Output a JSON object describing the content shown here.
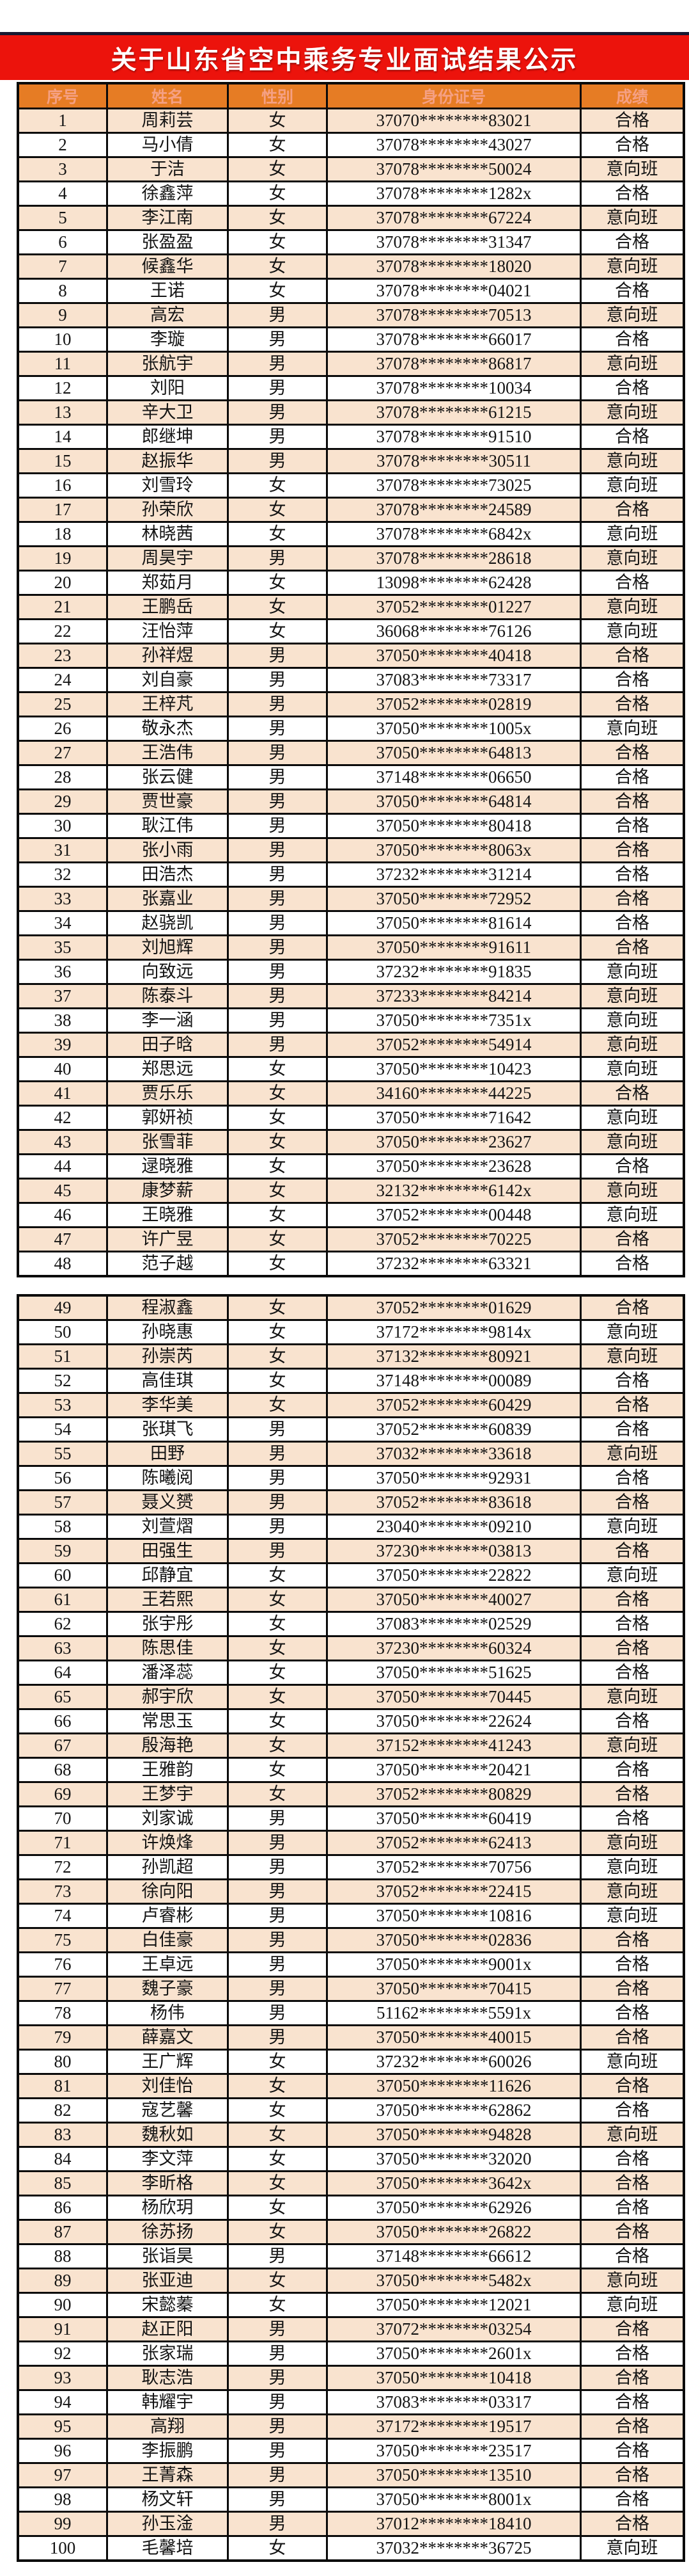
{
  "title": "关于山东省空中乘务专业面试结果公示",
  "colors": {
    "banner_red": "#ec130c",
    "top_line_dark": "#181830",
    "header_orange": "#e67c24",
    "header_text_salmon": "#f5a083",
    "row_stripe_peach": "#f9e3cf",
    "row_stripe_white": "#ffffff",
    "border_black": "#0a0a0a",
    "title_text": "#ffffff"
  },
  "table": {
    "headers": [
      "序号",
      "姓名",
      "性别",
      "身份证号",
      "成绩"
    ],
    "block_split_after_row": 48,
    "rows": [
      {
        "no": "1",
        "name": "周莉芸",
        "gender": "女",
        "id": "37070********83021",
        "result": "合格"
      },
      {
        "no": "2",
        "name": "马小倩",
        "gender": "女",
        "id": "37078********43027",
        "result": "合格"
      },
      {
        "no": "3",
        "name": "于洁",
        "gender": "女",
        "id": "37078********50024",
        "result": "意向班"
      },
      {
        "no": "4",
        "name": "徐鑫萍",
        "gender": "女",
        "id": "37078********1282x",
        "result": "合格"
      },
      {
        "no": "5",
        "name": "李江南",
        "gender": "女",
        "id": "37078********67224",
        "result": "意向班"
      },
      {
        "no": "6",
        "name": "张盈盈",
        "gender": "女",
        "id": "37078********31347",
        "result": "合格"
      },
      {
        "no": "7",
        "name": "候鑫华",
        "gender": "女",
        "id": "37078********18020",
        "result": "意向班"
      },
      {
        "no": "8",
        "name": "王诺",
        "gender": "女",
        "id": "37078********04021",
        "result": "合格"
      },
      {
        "no": "9",
        "name": "高宏",
        "gender": "男",
        "id": "37078********70513",
        "result": "意向班"
      },
      {
        "no": "10",
        "name": "李璇",
        "gender": "男",
        "id": "37078********66017",
        "result": "合格"
      },
      {
        "no": "11",
        "name": "张航宇",
        "gender": "男",
        "id": "37078********86817",
        "result": "意向班"
      },
      {
        "no": "12",
        "name": "刘阳",
        "gender": "男",
        "id": "37078********10034",
        "result": "合格"
      },
      {
        "no": "13",
        "name": "辛大卫",
        "gender": "男",
        "id": "37078********61215",
        "result": "意向班"
      },
      {
        "no": "14",
        "name": "郎继坤",
        "gender": "男",
        "id": "37078********91510",
        "result": "合格"
      },
      {
        "no": "15",
        "name": "赵振华",
        "gender": "男",
        "id": "37078********30511",
        "result": "意向班"
      },
      {
        "no": "16",
        "name": "刘雪玲",
        "gender": "女",
        "id": "37078********73025",
        "result": "意向班"
      },
      {
        "no": "17",
        "name": "孙荣欣",
        "gender": "女",
        "id": "37078********24589",
        "result": "合格"
      },
      {
        "no": "18",
        "name": "林晓茜",
        "gender": "女",
        "id": "37078********6842x",
        "result": "意向班"
      },
      {
        "no": "19",
        "name": "周昊宇",
        "gender": "男",
        "id": "37078********28618",
        "result": "意向班"
      },
      {
        "no": "20",
        "name": "郑茹月",
        "gender": "女",
        "id": "13098********62428",
        "result": "合格"
      },
      {
        "no": "21",
        "name": "王鹏岳",
        "gender": "女",
        "id": "37052********01227",
        "result": "意向班"
      },
      {
        "no": "22",
        "name": "汪怡萍",
        "gender": "女",
        "id": "36068********76126",
        "result": "意向班"
      },
      {
        "no": "23",
        "name": "孙祥煜",
        "gender": "男",
        "id": "37050********40418",
        "result": "合格"
      },
      {
        "no": "24",
        "name": "刘自豪",
        "gender": "男",
        "id": "37083********73317",
        "result": "合格"
      },
      {
        "no": "25",
        "name": "王梓芃",
        "gender": "男",
        "id": "37052********02819",
        "result": "合格"
      },
      {
        "no": "26",
        "name": "敬永杰",
        "gender": "男",
        "id": "37050********1005x",
        "result": "意向班"
      },
      {
        "no": "27",
        "name": "王浩伟",
        "gender": "男",
        "id": "37050********64813",
        "result": "合格"
      },
      {
        "no": "28",
        "name": "张云健",
        "gender": "男",
        "id": "37148********06650",
        "result": "合格"
      },
      {
        "no": "29",
        "name": "贾世豪",
        "gender": "男",
        "id": "37050********64814",
        "result": "合格"
      },
      {
        "no": "30",
        "name": "耿江伟",
        "gender": "男",
        "id": "37050********80418",
        "result": "合格"
      },
      {
        "no": "31",
        "name": "张小雨",
        "gender": "男",
        "id": "37050********8063x",
        "result": "合格"
      },
      {
        "no": "32",
        "name": "田浩杰",
        "gender": "男",
        "id": "37232********31214",
        "result": "合格"
      },
      {
        "no": "33",
        "name": "张嘉业",
        "gender": "男",
        "id": "37050********72952",
        "result": "合格"
      },
      {
        "no": "34",
        "name": "赵骁凯",
        "gender": "男",
        "id": "37050********81614",
        "result": "合格"
      },
      {
        "no": "35",
        "name": "刘旭辉",
        "gender": "男",
        "id": "37050********91611",
        "result": "合格"
      },
      {
        "no": "36",
        "name": "向致远",
        "gender": "男",
        "id": "37232********91835",
        "result": "意向班"
      },
      {
        "no": "37",
        "name": "陈泰斗",
        "gender": "男",
        "id": "37233********84214",
        "result": "意向班"
      },
      {
        "no": "38",
        "name": "李一涵",
        "gender": "男",
        "id": "37050********7351x",
        "result": "意向班"
      },
      {
        "no": "39",
        "name": "田子晗",
        "gender": "男",
        "id": "37052********54914",
        "result": "意向班"
      },
      {
        "no": "40",
        "name": "郑思远",
        "gender": "女",
        "id": "37050********10423",
        "result": "意向班"
      },
      {
        "no": "41",
        "name": "贾乐乐",
        "gender": "女",
        "id": "34160********44225",
        "result": "合格"
      },
      {
        "no": "42",
        "name": "郭妍祯",
        "gender": "女",
        "id": "37050********71642",
        "result": "意向班"
      },
      {
        "no": "43",
        "name": "张雪菲",
        "gender": "女",
        "id": "37050********23627",
        "result": "意向班"
      },
      {
        "no": "44",
        "name": "逯晓雅",
        "gender": "女",
        "id": "37050********23628",
        "result": "合格"
      },
      {
        "no": "45",
        "name": "康梦薪",
        "gender": "女",
        "id": "32132********6142x",
        "result": "意向班"
      },
      {
        "no": "46",
        "name": "王晓雅",
        "gender": "女",
        "id": "37052********00448",
        "result": "意向班"
      },
      {
        "no": "47",
        "name": "许广昱",
        "gender": "女",
        "id": "37052********70225",
        "result": "合格"
      },
      {
        "no": "48",
        "name": "范子越",
        "gender": "女",
        "id": "37232********63321",
        "result": "合格"
      },
      {
        "no": "49",
        "name": "程淑鑫",
        "gender": "女",
        "id": "37052********01629",
        "result": "合格"
      },
      {
        "no": "50",
        "name": "孙晓惠",
        "gender": "女",
        "id": "37172********9814x",
        "result": "意向班"
      },
      {
        "no": "51",
        "name": "孙崇芮",
        "gender": "女",
        "id": "37132********80921",
        "result": "意向班"
      },
      {
        "no": "52",
        "name": "高佳琪",
        "gender": "女",
        "id": "37148********00089",
        "result": "合格"
      },
      {
        "no": "53",
        "name": "李华美",
        "gender": "女",
        "id": "37052********60429",
        "result": "合格"
      },
      {
        "no": "54",
        "name": "张琪飞",
        "gender": "男",
        "id": "37052********60839",
        "result": "合格"
      },
      {
        "no": "55",
        "name": "田野",
        "gender": "男",
        "id": "37032********33618",
        "result": "意向班"
      },
      {
        "no": "56",
        "name": "陈曦阅",
        "gender": "男",
        "id": "37050********92931",
        "result": "合格"
      },
      {
        "no": "57",
        "name": "聂义赟",
        "gender": "男",
        "id": "37052********83618",
        "result": "合格"
      },
      {
        "no": "58",
        "name": "刘萱熠",
        "gender": "男",
        "id": "23040********09210",
        "result": "意向班"
      },
      {
        "no": "59",
        "name": "田强生",
        "gender": "男",
        "id": "37230********03813",
        "result": "合格"
      },
      {
        "no": "60",
        "name": "邱静宜",
        "gender": "女",
        "id": "37050********22822",
        "result": "意向班"
      },
      {
        "no": "61",
        "name": "王若熙",
        "gender": "女",
        "id": "37050********40027",
        "result": "合格"
      },
      {
        "no": "62",
        "name": "张宇彤",
        "gender": "女",
        "id": "37083********02529",
        "result": "合格"
      },
      {
        "no": "63",
        "name": "陈思佳",
        "gender": "女",
        "id": "37230********60324",
        "result": "合格"
      },
      {
        "no": "64",
        "name": "潘泽蕊",
        "gender": "女",
        "id": "37050********51625",
        "result": "合格"
      },
      {
        "no": "65",
        "name": "郝宇欣",
        "gender": "女",
        "id": "37050********70445",
        "result": "意向班"
      },
      {
        "no": "66",
        "name": "常思玉",
        "gender": "女",
        "id": "37050********22624",
        "result": "合格"
      },
      {
        "no": "67",
        "name": "殷海艳",
        "gender": "女",
        "id": "37152********41243",
        "result": "意向班"
      },
      {
        "no": "68",
        "name": "王雅韵",
        "gender": "女",
        "id": "37050********20421",
        "result": "合格"
      },
      {
        "no": "69",
        "name": "王梦宇",
        "gender": "女",
        "id": "37052********80829",
        "result": "合格"
      },
      {
        "no": "70",
        "name": "刘家诚",
        "gender": "男",
        "id": "37050********60419",
        "result": "合格"
      },
      {
        "no": "71",
        "name": "许焕烽",
        "gender": "男",
        "id": "37052********62413",
        "result": "意向班"
      },
      {
        "no": "72",
        "name": "孙凯超",
        "gender": "男",
        "id": "37052********70756",
        "result": "意向班"
      },
      {
        "no": "73",
        "name": "徐向阳",
        "gender": "男",
        "id": "37052********22415",
        "result": "意向班"
      },
      {
        "no": "74",
        "name": "卢睿彬",
        "gender": "男",
        "id": "37050********10816",
        "result": "意向班"
      },
      {
        "no": "75",
        "name": "白佳豪",
        "gender": "男",
        "id": "37050********02836",
        "result": "合格"
      },
      {
        "no": "76",
        "name": "王卓远",
        "gender": "男",
        "id": "37050********9001x",
        "result": "合格"
      },
      {
        "no": "77",
        "name": "魏子豪",
        "gender": "男",
        "id": "37050********70415",
        "result": "合格"
      },
      {
        "no": "78",
        "name": "杨伟",
        "gender": "男",
        "id": "51162********5591x",
        "result": "合格"
      },
      {
        "no": "79",
        "name": "薛嘉文",
        "gender": "男",
        "id": "37050********40015",
        "result": "合格"
      },
      {
        "no": "80",
        "name": "王广辉",
        "gender": "女",
        "id": "37232********60026",
        "result": "意向班"
      },
      {
        "no": "81",
        "name": "刘佳怡",
        "gender": "女",
        "id": "37050********11626",
        "result": "合格"
      },
      {
        "no": "82",
        "name": "寇艺馨",
        "gender": "女",
        "id": "37050********62862",
        "result": "合格"
      },
      {
        "no": "83",
        "name": "魏秋如",
        "gender": "女",
        "id": "37050********94828",
        "result": "意向班"
      },
      {
        "no": "84",
        "name": "李文萍",
        "gender": "女",
        "id": "37050********32020",
        "result": "合格"
      },
      {
        "no": "85",
        "name": "李昕格",
        "gender": "女",
        "id": "37050********3642x",
        "result": "合格"
      },
      {
        "no": "86",
        "name": "杨欣玥",
        "gender": "女",
        "id": "37050********62926",
        "result": "合格"
      },
      {
        "no": "87",
        "name": "徐苏扬",
        "gender": "女",
        "id": "37050********26822",
        "result": "合格"
      },
      {
        "no": "88",
        "name": "张诣昊",
        "gender": "男",
        "id": "37148********66612",
        "result": "合格"
      },
      {
        "no": "89",
        "name": "张亚迪",
        "gender": "女",
        "id": "37050********5482x",
        "result": "意向班"
      },
      {
        "no": "90",
        "name": "宋懿蓁",
        "gender": "女",
        "id": "37050********12021",
        "result": "意向班"
      },
      {
        "no": "91",
        "name": "赵正阳",
        "gender": "男",
        "id": "37072********03254",
        "result": "合格"
      },
      {
        "no": "92",
        "name": "张家瑞",
        "gender": "男",
        "id": "37050********2601x",
        "result": "合格"
      },
      {
        "no": "93",
        "name": "耿志浩",
        "gender": "男",
        "id": "37050********10418",
        "result": "合格"
      },
      {
        "no": "94",
        "name": "韩耀宇",
        "gender": "男",
        "id": "37083********03317",
        "result": "合格"
      },
      {
        "no": "95",
        "name": "高翔",
        "gender": "男",
        "id": "37172********19517",
        "result": "合格"
      },
      {
        "no": "96",
        "name": "李振鹏",
        "gender": "男",
        "id": "37050********23517",
        "result": "合格"
      },
      {
        "no": "97",
        "name": "王菁森",
        "gender": "男",
        "id": "37050********13510",
        "result": "合格"
      },
      {
        "no": "98",
        "name": "杨文轩",
        "gender": "男",
        "id": "37050********8001x",
        "result": "合格"
      },
      {
        "no": "99",
        "name": "孙玉淦",
        "gender": "男",
        "id": "37012********18410",
        "result": "合格"
      },
      {
        "no": "100",
        "name": "毛馨培",
        "gender": "女",
        "id": "37032********36725",
        "result": "意向班"
      }
    ]
  }
}
